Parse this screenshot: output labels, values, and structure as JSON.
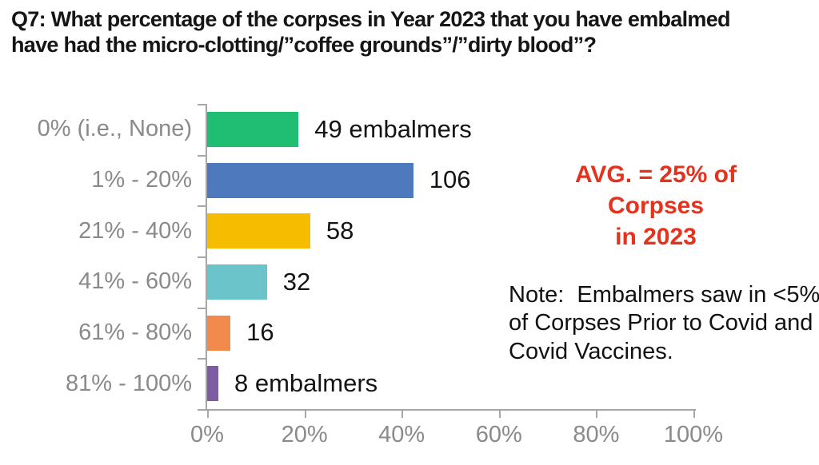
{
  "header": {
    "title_lines": [
      "Q7: What percentage of the corpses in Year 2023 that you have embalmed",
      "have had the micro-clotting/”coffee grounds”/”dirty blood”?"
    ]
  },
  "annotations": {
    "avg": {
      "line1": "AVG. = 25% of Corpses",
      "line2": "in 2023",
      "color": "#e6321c"
    },
    "note": {
      "lines": [
        "Note:  Embalmers saw in <5%",
        "of Corpses Prior to Covid and",
        "Covid Vaccines."
      ]
    }
  },
  "chart_data": {
    "type": "bar",
    "orientation": "horizontal",
    "categories": [
      "0% (i.e., None)",
      "1% - 20%",
      "21% - 40%",
      "41% - 60%",
      "61% - 80%",
      "81% - 100%"
    ],
    "values": [
      49,
      106,
      58,
      32,
      16,
      8
    ],
    "data_labels": [
      "49 embalmers",
      "106",
      "58",
      "32",
      "16",
      "8 embalmers"
    ],
    "bar_colors": [
      "#1fbe72",
      "#4e79bc",
      "#f5bc00",
      "#6ac4ca",
      "#f28a4d",
      "#7d5da1"
    ],
    "bar_length_axis_pct": [
      18.8,
      42.4,
      21.2,
      12.3,
      4.8,
      2.3
    ],
    "x_ticks": [
      "0%",
      "20%",
      "40%",
      "60%",
      "80%",
      "100%"
    ],
    "xlim": [
      0,
      100
    ],
    "xlabel": "",
    "ylabel": "",
    "legend": "none",
    "grid": "off",
    "axis_color": "#a6a6a6",
    "category_label_color": "#8a8a8a",
    "value_label_color": "#141414"
  }
}
